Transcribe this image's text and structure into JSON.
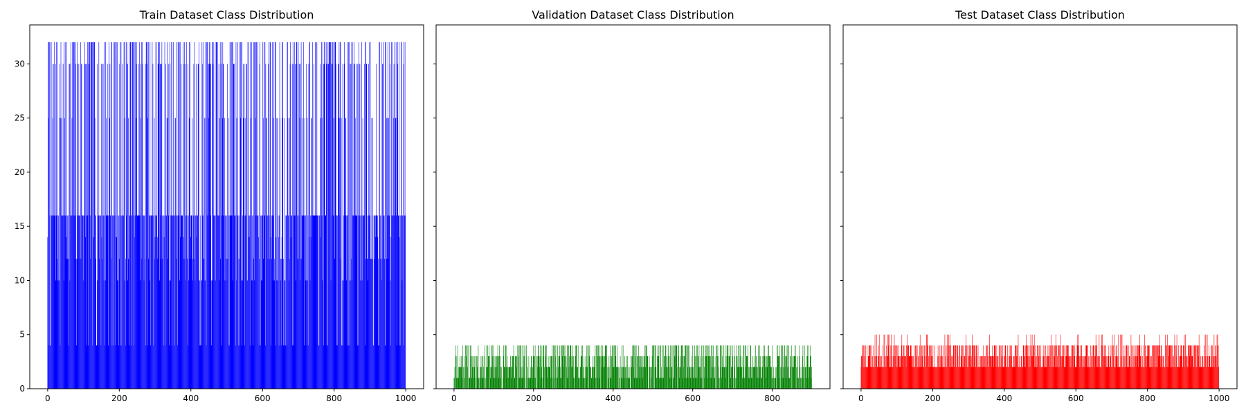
{
  "chart_data": [
    {
      "type": "bar",
      "title": "Train Dataset Class Distribution",
      "color": "#0000ff",
      "x_count": 1000,
      "xlim": [
        -50,
        1050
      ],
      "ylim": [
        0,
        33.6
      ],
      "xticks": [
        0,
        200,
        400,
        600,
        800,
        1000
      ],
      "yticks": [
        0,
        5,
        10,
        15,
        20,
        25,
        30
      ],
      "value_levels": [
        4,
        10,
        12,
        14,
        16,
        25,
        30,
        32
      ],
      "level_weights": [
        0.09,
        0.07,
        0.07,
        0.03,
        0.33,
        0.08,
        0.11,
        0.22
      ],
      "seed": 7,
      "values": []
    },
    {
      "type": "bar",
      "title": "Validation Dataset Class Distribution",
      "color": "#008000",
      "x_count": 900,
      "xlim": [
        -45,
        945
      ],
      "ylim": [
        0,
        33.6
      ],
      "xticks": [
        0,
        200,
        400,
        600,
        800
      ],
      "yticks": [
        0,
        5,
        10,
        15,
        20,
        25,
        30
      ],
      "value_levels": [
        0,
        1,
        2,
        3,
        4
      ],
      "level_weights": [
        0.08,
        0.22,
        0.22,
        0.24,
        0.24
      ],
      "seed": 11,
      "values": []
    },
    {
      "type": "bar",
      "title": "Test Dataset Class Distribution",
      "color": "#ff0000",
      "x_count": 1000,
      "xlim": [
        -50,
        1050
      ],
      "ylim": [
        0,
        33.6
      ],
      "xticks": [
        0,
        200,
        400,
        600,
        800,
        1000
      ],
      "yticks": [
        0,
        5,
        10,
        15,
        20,
        25,
        30
      ],
      "value_levels": [
        2,
        3,
        4,
        5
      ],
      "level_weights": [
        0.35,
        0.3,
        0.28,
        0.07
      ],
      "seed": 23,
      "values": []
    }
  ]
}
